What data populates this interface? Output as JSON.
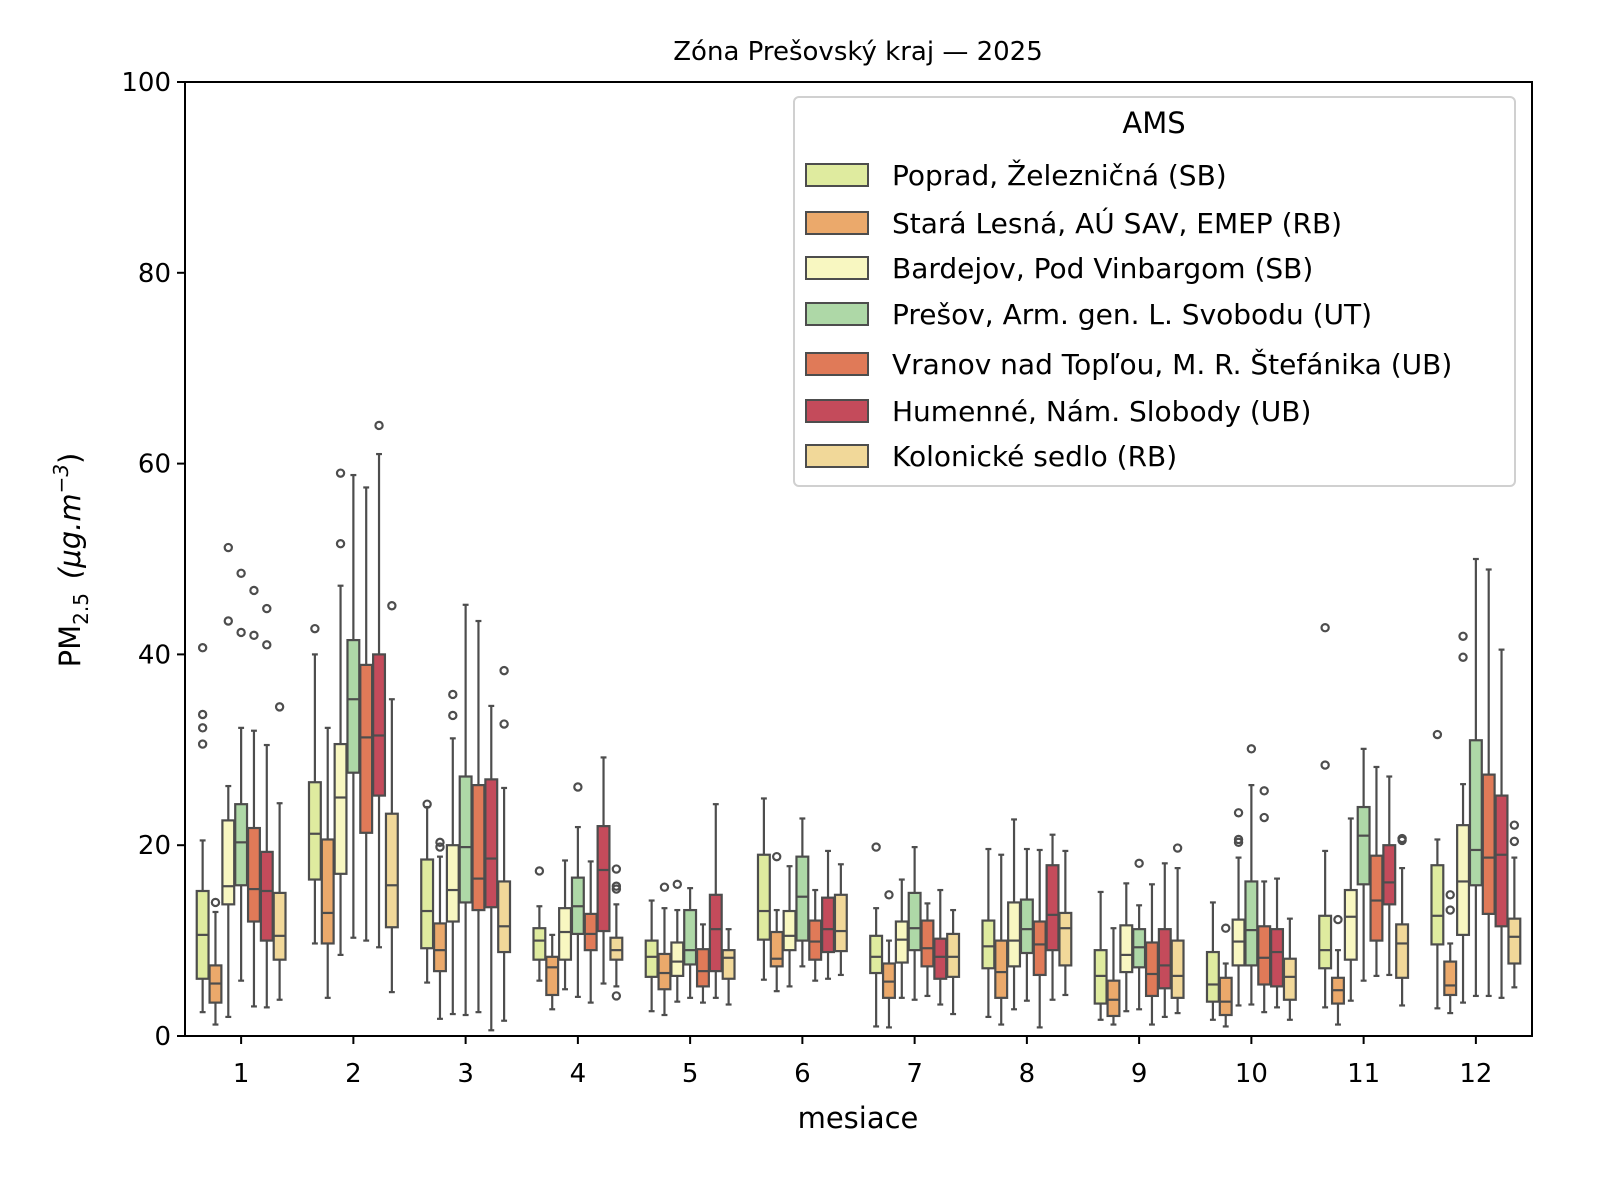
{
  "chart_data": {
    "type": "boxplot",
    "title": "Zóna Prešovský kraj —  2025",
    "xlabel": "mesiace",
    "ylabel_main": "PM",
    "ylabel_sub": "2.5",
    "ylabel_unit": "(μg.m",
    "ylabel_exp": "−3",
    "ylabel_close": ")",
    "ylim": [
      0,
      100
    ],
    "yticks": [
      0,
      20,
      40,
      60,
      80,
      100
    ],
    "categories": [
      "1",
      "2",
      "3",
      "4",
      "5",
      "6",
      "7",
      "8",
      "9",
      "10",
      "11",
      "12"
    ],
    "grid": false,
    "legend": {
      "title": "AMS",
      "placement": "top-right"
    },
    "series": [
      {
        "name": "Poprad, Železničná (SB)",
        "color": "#dfeb9f",
        "stats": [
          [
            2.5,
            6,
            10.6,
            15.2,
            20.5
          ],
          [
            9.7,
            16.4,
            21.2,
            26.6,
            40
          ],
          [
            5.6,
            9.2,
            13.1,
            18.5,
            24
          ],
          [
            5.8,
            8,
            10,
            11.3,
            13.6
          ],
          [
            2.6,
            6.2,
            8.3,
            10,
            14.2
          ],
          [
            5.9,
            10.1,
            13.1,
            19,
            24.9
          ],
          [
            1,
            6.6,
            8.3,
            10.5,
            13.4
          ],
          [
            2,
            7.1,
            9.4,
            12.1,
            19.6
          ],
          [
            1.7,
            3.4,
            6.3,
            9,
            15.1
          ],
          [
            1.7,
            3.6,
            5.4,
            8.8,
            14
          ],
          [
            3,
            7.1,
            9,
            12.6,
            19.4
          ],
          [
            2.9,
            9.6,
            12.6,
            17.9,
            20.6
          ]
        ],
        "fliers": [
          [
            30.6,
            32.3,
            33.7,
            40.7
          ],
          [
            42.7
          ],
          [
            24.3
          ],
          [
            17.3
          ],
          [],
          [],
          [
            19.8
          ],
          [],
          [],
          [],
          [
            28.4,
            42.8
          ],
          [
            31.6
          ]
        ]
      },
      {
        "name": "Stará Lesná, AÚ SAV, EMEP (RB)",
        "color": "#eba96b",
        "stats": [
          [
            1.2,
            3.5,
            5.5,
            7.4,
            13
          ],
          [
            4,
            9.7,
            12.9,
            20.6,
            32.3
          ],
          [
            1.8,
            6.8,
            9,
            11.8,
            18.8
          ],
          [
            2.8,
            4.3,
            7.2,
            8.3,
            10.6
          ],
          [
            2.2,
            4.9,
            6.6,
            8.6,
            13.4
          ],
          [
            4.7,
            7.3,
            8.1,
            10.9,
            13.2
          ],
          [
            0.9,
            4,
            5.7,
            7.6,
            10
          ],
          [
            1.2,
            4,
            6.7,
            10,
            19
          ],
          [
            1.2,
            2.1,
            3.8,
            5.8,
            11.3
          ],
          [
            1,
            2.2,
            3.6,
            6.1,
            7.6
          ],
          [
            1.2,
            3.4,
            4.8,
            6.1,
            9
          ],
          [
            2.4,
            4.3,
            5.3,
            7.8,
            9.7
          ]
        ],
        "fliers": [
          [
            14
          ],
          [],
          [
            19.8,
            20.3
          ],
          [],
          [
            15.6
          ],
          [
            18.8
          ],
          [
            14.8
          ],
          [],
          [],
          [
            11.3
          ],
          [
            12.2
          ],
          [
            13.2,
            14.8
          ]
        ]
      },
      {
        "name": "Bardejov, Pod Vinbargom (SB)",
        "color": "#f8f7c1",
        "stats": [
          [
            2,
            13.8,
            15.7,
            22.6,
            26.2
          ],
          [
            8.5,
            17,
            25,
            30.6,
            47.2
          ],
          [
            2.3,
            12,
            15.3,
            20,
            31.2
          ],
          [
            4.9,
            8,
            10.9,
            13.4,
            18.4
          ],
          [
            3.6,
            6.3,
            7.8,
            9.8,
            13.2
          ],
          [
            5.2,
            9,
            10.5,
            13.1,
            17.8
          ],
          [
            4,
            7.7,
            10.1,
            12,
            16.4
          ],
          [
            2.8,
            7.3,
            10,
            14,
            22.7
          ],
          [
            2.6,
            6.7,
            8.5,
            11.6,
            16
          ],
          [
            3.2,
            7.4,
            9.9,
            12.2,
            18.7
          ],
          [
            3.7,
            8,
            12.5,
            15.3,
            22.8
          ],
          [
            3.5,
            10.6,
            16.2,
            22.1,
            26.4
          ]
        ],
        "fliers": [
          [
            43.5,
            51.2
          ],
          [
            51.6,
            59
          ],
          [
            33.6,
            35.8
          ],
          [],
          [
            15.9
          ],
          [],
          [],
          [],
          [],
          [
            20.3,
            20.6,
            23.4
          ],
          [],
          [
            39.7,
            41.9
          ]
        ]
      },
      {
        "name": "Prešov, Arm. gen. L. Svobodu (UT)",
        "color": "#aed8a7",
        "stats": [
          [
            5.8,
            15.8,
            20.3,
            24.3,
            32.3
          ],
          [
            10.3,
            27.6,
            35.3,
            41.5,
            58.8
          ],
          [
            2.2,
            14,
            19.8,
            27.2,
            45.2
          ],
          [
            4.1,
            10.7,
            13.6,
            16.6,
            21.9
          ],
          [
            4,
            7.5,
            9,
            13.2,
            15.5
          ],
          [
            7.3,
            10,
            14.6,
            18.8,
            22.8
          ],
          [
            3.8,
            9,
            11.3,
            15,
            19.8
          ],
          [
            3.7,
            8.7,
            11.2,
            14.3,
            19.6
          ],
          [
            2.8,
            7.2,
            9.3,
            11.2,
            13.7
          ],
          [
            3.3,
            7.4,
            11.1,
            16.2,
            26.3
          ],
          [
            5.8,
            15.9,
            21,
            24,
            30.1
          ],
          [
            4.2,
            15.8,
            19.5,
            31,
            50
          ]
        ],
        "fliers": [
          [
            42.3,
            48.5
          ],
          [],
          [],
          [
            26.1
          ],
          [],
          [],
          [],
          [],
          [
            18.1
          ],
          [
            30.1
          ],
          [],
          []
        ]
      },
      {
        "name": "Vranov nad Topľou, M. R. Štefánika (UB)",
        "color": "#e07a58",
        "stats": [
          [
            3.1,
            12,
            15.4,
            21.8,
            32
          ],
          [
            10,
            21.3,
            31.3,
            38.9,
            57.5
          ],
          [
            2.5,
            13.2,
            16.5,
            26.3,
            43.5
          ],
          [
            3.5,
            9,
            10.7,
            12.8,
            18.3
          ],
          [
            3.5,
            5.2,
            6.8,
            9.1,
            11.7
          ],
          [
            5.8,
            8,
            9.9,
            12.1,
            15.3
          ],
          [
            4.2,
            7.3,
            9.2,
            12.1,
            13.9
          ],
          [
            0.9,
            6.4,
            9.6,
            12,
            19.5
          ],
          [
            1.2,
            4.2,
            6.5,
            9.8,
            15.9
          ],
          [
            2.5,
            5.4,
            8.2,
            11.5,
            16.2
          ],
          [
            6.3,
            10,
            14.2,
            18.9,
            28.2
          ],
          [
            4.2,
            12.8,
            18.7,
            27.4,
            48.9
          ]
        ],
        "fliers": [
          [
            42,
            46.7
          ],
          [],
          [],
          [],
          [],
          [],
          [],
          [],
          [],
          [
            22.9,
            25.7
          ],
          [],
          []
        ]
      },
      {
        "name": "Humenné, Nám. Slobody (UB)",
        "color": "#c44b5b",
        "stats": [
          [
            3,
            10,
            15.2,
            19.3,
            30.5
          ],
          [
            9.3,
            25.2,
            31.5,
            40,
            61
          ],
          [
            0.6,
            13.5,
            18.6,
            26.9,
            34.6
          ],
          [
            5.5,
            11,
            17.4,
            22,
            29.2
          ],
          [
            4,
            6.8,
            11.2,
            14.8,
            24.3
          ],
          [
            6,
            8.8,
            11.2,
            14.5,
            19.4
          ],
          [
            3.3,
            6,
            8.3,
            10.2,
            15.3
          ],
          [
            3.8,
            9,
            12.7,
            17.9,
            21.1
          ],
          [
            2,
            5,
            7.4,
            11.2,
            18.1
          ],
          [
            3,
            5.2,
            8.8,
            11.2,
            16.5
          ],
          [
            6.4,
            13.8,
            16.1,
            20,
            27.2
          ],
          [
            4,
            11.5,
            19,
            25.2,
            40.5
          ]
        ],
        "fliers": [
          [
            41,
            44.8
          ],
          [
            64
          ],
          [],
          [],
          [],
          [],
          [],
          [],
          [],
          [],
          [],
          []
        ]
      },
      {
        "name": "Kolonické sedlo (RB)",
        "color": "#f1d899",
        "stats": [
          [
            3.8,
            8,
            10.5,
            15,
            24.4
          ],
          [
            4.6,
            11.4,
            15.8,
            23.3,
            35.3
          ],
          [
            1.6,
            8.8,
            11.5,
            16.2,
            26
          ],
          [
            5.2,
            8,
            9,
            10.3,
            13.8
          ],
          [
            3.3,
            6,
            8.2,
            9,
            11.2
          ],
          [
            6.4,
            8.9,
            11,
            14.8,
            18
          ],
          [
            2.3,
            6.2,
            8.3,
            10.7,
            13.2
          ],
          [
            4.3,
            7.4,
            11.3,
            12.9,
            19.4
          ],
          [
            2.4,
            4,
            6.3,
            10,
            17.6
          ],
          [
            1.7,
            3.8,
            6.2,
            8.1,
            12.3
          ],
          [
            3.2,
            6.1,
            9.7,
            11.7,
            17.6
          ],
          [
            5.1,
            7.6,
            10.4,
            12.3,
            18.7
          ]
        ],
        "fliers": [
          [
            34.5
          ],
          [
            45.1
          ],
          [
            32.7,
            38.3
          ],
          [
            4.2,
            15.4,
            15.7,
            17.5
          ],
          [],
          [],
          [],
          [],
          [
            19.7
          ],
          [],
          [
            20.5,
            20.7
          ],
          [
            20.4,
            22.1
          ]
        ]
      }
    ]
  }
}
